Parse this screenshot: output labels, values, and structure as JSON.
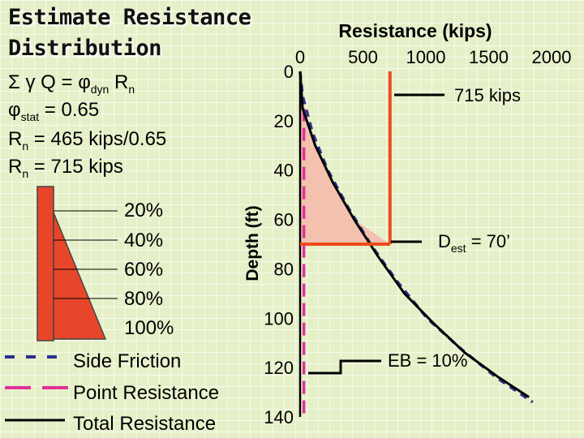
{
  "slide": {
    "title_line1": "Estimate Resistance",
    "title_line2": "Distribution",
    "eq1": {
      "prefix": "Σ γ Q = φ",
      "sub": "dyn",
      "suffix": " R",
      "sub2": "n"
    },
    "eq2": {
      "prefix": "φ",
      "sub": "stat",
      "suffix": " = 0.65"
    },
    "eq3": {
      "prefix": "R",
      "sub": "n",
      "suffix": " = 465 kips/0.65"
    },
    "eq4": {
      "prefix": "R",
      "sub": "n",
      "suffix": " = 715 kips"
    }
  },
  "pile": {
    "percent_labels": [
      "20%",
      "40%",
      "60%",
      "80%",
      "100%"
    ],
    "colors": {
      "pile": "#e8462a",
      "pile_edge": "#444444"
    }
  },
  "legend": {
    "items": [
      {
        "label": "Side Friction",
        "style": "dash-navy"
      },
      {
        "label": "Point Resistance",
        "style": "dash-magenta"
      },
      {
        "label": "Total Resistance",
        "style": "solid-black"
      }
    ]
  },
  "annotations": {
    "resistance_label": "715 kips",
    "depth_label_prefix": "D",
    "depth_label_sub": "est",
    "depth_label_suffix": " = 70’",
    "eb_label": "EB = 10%"
  },
  "colors": {
    "background": "#e6f0c8",
    "grid": "#ffffff",
    "side_friction": "#2b2f8f",
    "point_resistance": "#e0309a",
    "total": "#000000",
    "orange": "#ee4a1c",
    "shade": "#f4b8a8"
  },
  "chart_data": {
    "type": "line",
    "title": "Resistance (kips)",
    "xlabel": "Resistance (kips)",
    "ylabel": "Depth (ft)",
    "x_ticks": [
      0,
      500,
      1000,
      1500,
      2000
    ],
    "y_ticks": [
      0,
      20,
      40,
      60,
      80,
      100,
      120,
      140
    ],
    "xlim": [
      0,
      2000
    ],
    "ylim": [
      0,
      140
    ],
    "y_inverted": true,
    "series": [
      {
        "name": "Side Friction",
        "style": "dashed",
        "color": "#2b2f8f",
        "x": [
          0,
          20,
          100,
          220,
          380,
          560,
          770,
          1010,
          1270,
          1560,
          1850
        ],
        "y": [
          0,
          10,
          25,
          40,
          55,
          70,
          85,
          100,
          112,
          124,
          134
        ]
      },
      {
        "name": "Point Resistance",
        "style": "dashed",
        "color": "#e0309a",
        "x": [
          30,
          30,
          30,
          30,
          30,
          30,
          30,
          30
        ],
        "y": [
          15,
          30,
          50,
          70,
          90,
          110,
          125,
          140
        ]
      },
      {
        "name": "Total Resistance",
        "style": "solid",
        "color": "#000000",
        "x": [
          0,
          20,
          120,
          260,
          430,
          620,
          830,
          1060,
          1310,
          1580,
          1820
        ],
        "y": [
          0,
          15,
          30,
          45,
          60,
          75,
          90,
          102,
          114,
          124,
          132
        ]
      }
    ],
    "reference_lines": [
      {
        "type": "vertical",
        "x": 715,
        "from_depth": 0,
        "to_depth": 70,
        "label": "715 kips"
      },
      {
        "type": "horizontal",
        "y": 70,
        "from_x": 0,
        "to_x": 715,
        "label": "Dest = 70’"
      }
    ]
  }
}
